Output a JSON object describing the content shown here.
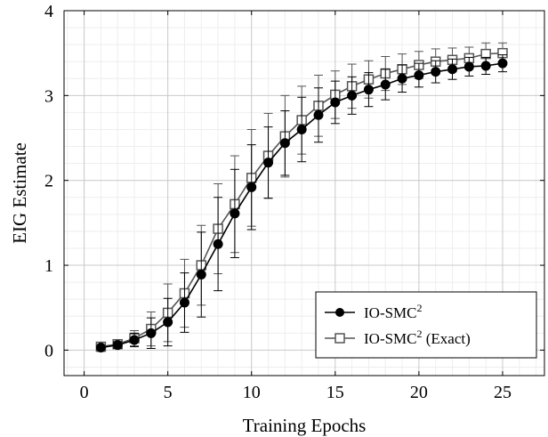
{
  "chart_data": {
    "type": "line",
    "xlabel": "Training Epochs",
    "ylabel": "EIG Estimate",
    "xlim": [
      -1.2,
      27.5
    ],
    "ylim": [
      -0.3,
      4
    ],
    "xticks": [
      0,
      5,
      10,
      15,
      20,
      25
    ],
    "yticks": [
      0,
      1,
      2,
      3,
      4
    ],
    "grid": true,
    "legend_position": "bottom-right",
    "x": [
      1,
      2,
      3,
      4,
      5,
      6,
      7,
      8,
      9,
      10,
      11,
      12,
      13,
      14,
      15,
      16,
      17,
      18,
      19,
      20,
      21,
      22,
      23,
      24,
      25
    ],
    "series": [
      {
        "name": "IO-SMC",
        "name_sup": "2",
        "marker": "filled-circle",
        "color": "#000000",
        "values": [
          0.03,
          0.06,
          0.12,
          0.2,
          0.33,
          0.56,
          0.89,
          1.25,
          1.61,
          1.92,
          2.21,
          2.44,
          2.6,
          2.77,
          2.92,
          3.0,
          3.07,
          3.13,
          3.2,
          3.24,
          3.28,
          3.31,
          3.34,
          3.35,
          3.38
        ],
        "errors": [
          0.02,
          0.04,
          0.08,
          0.18,
          0.28,
          0.35,
          0.5,
          0.55,
          0.52,
          0.5,
          0.42,
          0.38,
          0.38,
          0.32,
          0.25,
          0.22,
          0.2,
          0.18,
          0.16,
          0.14,
          0.13,
          0.12,
          0.11,
          0.1,
          0.1
        ]
      },
      {
        "name": "IO-SMC",
        "name_sup": "2",
        "name_suffix": " (Exact)",
        "marker": "open-square",
        "color": "#555555",
        "values": [
          0.04,
          0.07,
          0.14,
          0.25,
          0.44,
          0.67,
          1.0,
          1.43,
          1.72,
          2.03,
          2.29,
          2.52,
          2.71,
          2.88,
          3.01,
          3.11,
          3.19,
          3.26,
          3.31,
          3.36,
          3.4,
          3.42,
          3.44,
          3.49,
          3.5
        ],
        "errors": [
          0.02,
          0.04,
          0.09,
          0.2,
          0.34,
          0.4,
          0.47,
          0.53,
          0.57,
          0.57,
          0.5,
          0.48,
          0.4,
          0.36,
          0.28,
          0.26,
          0.22,
          0.2,
          0.18,
          0.16,
          0.15,
          0.14,
          0.13,
          0.13,
          0.12
        ]
      }
    ]
  }
}
